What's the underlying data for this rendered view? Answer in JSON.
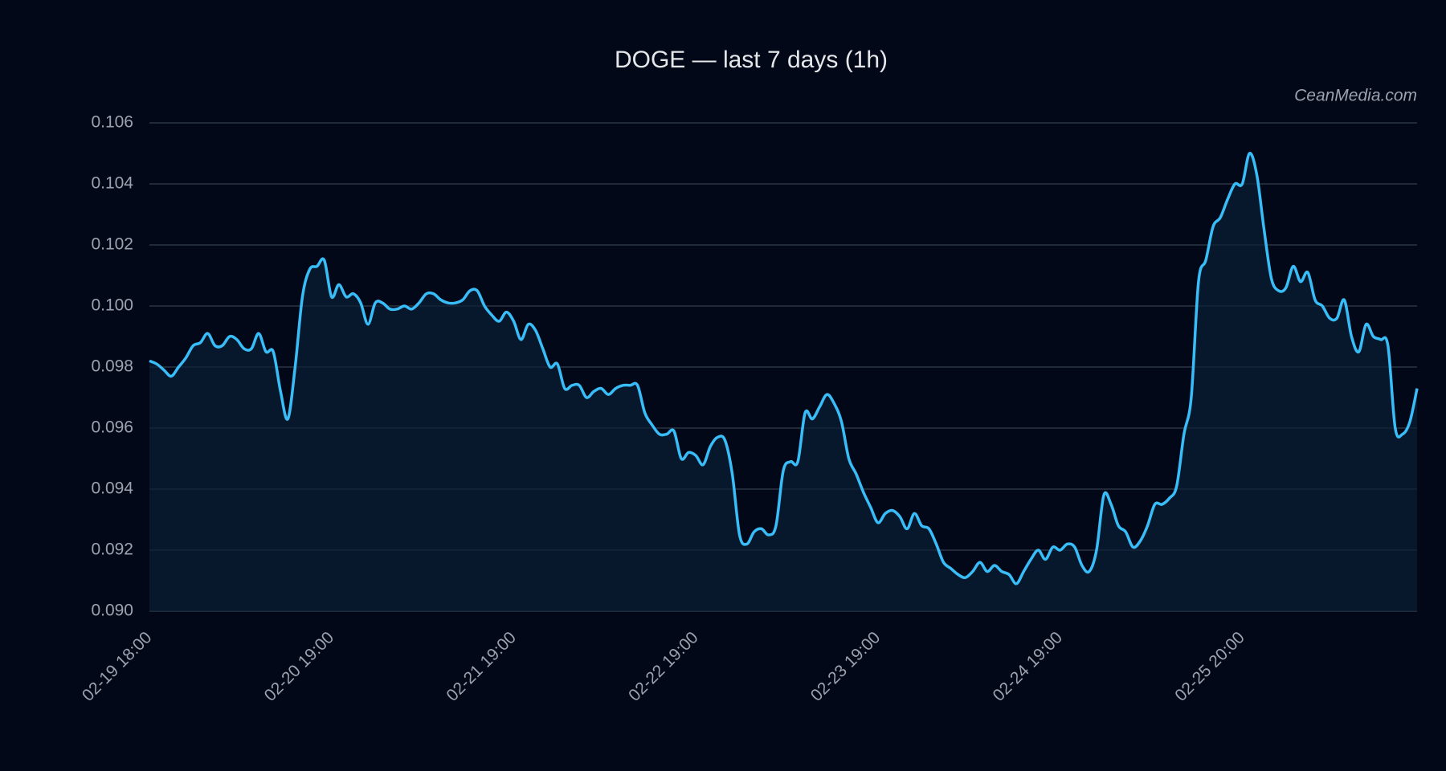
{
  "chart_data": {
    "type": "line",
    "title": "DOGE — last 7 days (1h)",
    "watermark": "CeanMedia.com",
    "categories": [
      "02-19 18:00",
      null,
      null,
      null,
      null,
      null,
      null,
      null,
      null,
      null,
      null,
      null,
      null,
      null,
      null,
      null,
      null,
      null,
      null,
      null,
      null,
      null,
      null,
      null,
      null,
      "02-20 19:00",
      null,
      null,
      null,
      null,
      null,
      null,
      null,
      null,
      null,
      null,
      null,
      null,
      null,
      null,
      null,
      null,
      null,
      null,
      null,
      null,
      null,
      null,
      null,
      null,
      "02-21 19:00",
      null,
      null,
      null,
      null,
      null,
      null,
      null,
      null,
      null,
      null,
      null,
      null,
      null,
      null,
      null,
      null,
      null,
      null,
      null,
      null,
      null,
      null,
      null,
      null,
      "02-22 19:00",
      null,
      null,
      null,
      null,
      null,
      null,
      null,
      null,
      null,
      null,
      null,
      null,
      null,
      null,
      null,
      null,
      null,
      null,
      null,
      null,
      null,
      null,
      null,
      null,
      "02-23 19:00",
      null,
      null,
      null,
      null,
      null,
      null,
      null,
      null,
      null,
      null,
      null,
      null,
      null,
      null,
      null,
      null,
      null,
      null,
      null,
      null,
      null,
      null,
      null,
      null,
      "02-24 19:00",
      null,
      null,
      null,
      null,
      null,
      null,
      null,
      null,
      null,
      null,
      null,
      null,
      null,
      null,
      null,
      null,
      null,
      null,
      null,
      null,
      null,
      null,
      null,
      null,
      "02-25 20:00",
      null,
      null,
      null,
      null,
      null,
      null,
      null,
      null,
      null,
      null,
      null,
      null,
      null,
      null,
      null,
      null,
      null,
      null,
      null,
      null,
      null,
      null,
      null,
      null
    ],
    "values": [
      0.0982,
      0.0981,
      0.0979,
      0.0977,
      0.098,
      0.0983,
      0.0987,
      0.0988,
      0.0991,
      0.0987,
      0.0987,
      0.099,
      0.0989,
      0.0986,
      0.0986,
      0.0991,
      0.0985,
      0.0985,
      0.0972,
      0.0963,
      0.098,
      0.1003,
      0.1012,
      0.1013,
      0.1015,
      0.1003,
      0.1007,
      0.1003,
      0.1004,
      0.1001,
      0.0994,
      0.1001,
      0.1001,
      0.0999,
      0.0999,
      0.1,
      0.0999,
      0.1001,
      0.1004,
      0.1004,
      0.1002,
      0.1001,
      0.1001,
      0.1002,
      0.1005,
      0.1005,
      0.1,
      0.0997,
      0.0995,
      0.0998,
      0.0995,
      0.0989,
      0.0994,
      0.0992,
      0.0986,
      0.098,
      0.0981,
      0.0973,
      0.0974,
      0.0974,
      0.097,
      0.0972,
      0.0973,
      0.0971,
      0.0973,
      0.0974,
      0.0974,
      0.0974,
      0.0965,
      0.0961,
      0.0958,
      0.0958,
      0.0959,
      0.095,
      0.0952,
      0.0951,
      0.0948,
      0.0954,
      0.0957,
      0.0956,
      0.0945,
      0.0925,
      0.0922,
      0.0926,
      0.0927,
      0.0925,
      0.0928,
      0.0946,
      0.0949,
      0.0949,
      0.0965,
      0.0963,
      0.0967,
      0.0971,
      0.0968,
      0.0962,
      0.095,
      0.0945,
      0.0939,
      0.0934,
      0.0929,
      0.0932,
      0.0933,
      0.0931,
      0.0927,
      0.0932,
      0.0928,
      0.0927,
      0.0922,
      0.0916,
      0.0914,
      0.0912,
      0.0911,
      0.0913,
      0.0916,
      0.0913,
      0.0915,
      0.0913,
      0.0912,
      0.0909,
      0.0913,
      0.0917,
      0.092,
      0.0917,
      0.0921,
      0.092,
      0.0922,
      0.0921,
      0.0915,
      0.0913,
      0.092,
      0.0938,
      0.0935,
      0.0928,
      0.0926,
      0.0921,
      0.0923,
      0.0928,
      0.0935,
      0.0935,
      0.0937,
      0.0941,
      0.0958,
      0.097,
      0.1008,
      0.1015,
      0.1026,
      0.1029,
      0.1035,
      0.104,
      0.104,
      0.105,
      0.1043,
      0.1025,
      0.1009,
      0.1005,
      0.1006,
      0.1013,
      0.1008,
      0.1011,
      0.1002,
      0.1,
      0.0996,
      0.0996,
      0.1002,
      0.099,
      0.0985,
      0.0994,
      0.099,
      0.0989,
      0.0987,
      0.096,
      0.0958,
      0.0962,
      0.0973
    ],
    "color": "#38bdf8",
    "ylim": [
      0.09,
      0.106
    ],
    "yticks": [
      {
        "value": 0.09,
        "label": "0.090"
      },
      {
        "value": 0.092,
        "label": "0.092"
      },
      {
        "value": 0.094,
        "label": "0.094"
      },
      {
        "value": 0.096,
        "label": "0.096"
      },
      {
        "value": 0.098,
        "label": "0.098"
      },
      {
        "value": 0.1,
        "label": "0.100"
      },
      {
        "value": 0.102,
        "label": "0.102"
      },
      {
        "value": 0.104,
        "label": "0.104"
      },
      {
        "value": 0.106,
        "label": "0.106"
      }
    ],
    "grid": true
  }
}
